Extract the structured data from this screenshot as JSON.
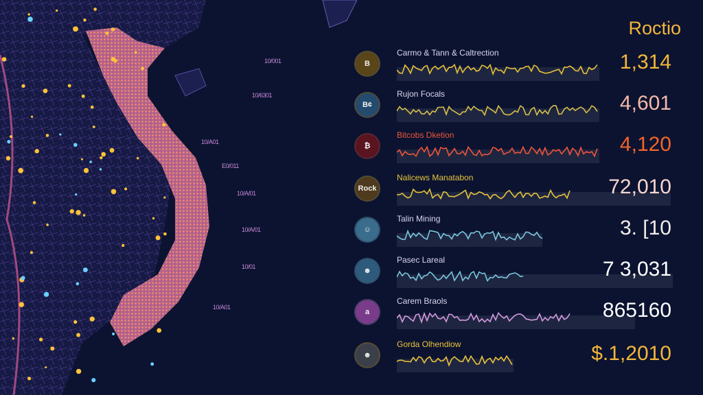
{
  "title": "Roctio",
  "map_labels": [
    "10/001",
    "10/6301",
    "10/A01",
    "E0/011",
    "10/A/01",
    "10/A/01",
    "10/01",
    "10/A01"
  ],
  "rows": [
    {
      "label": "Carmo & Tann & Caltrection",
      "value": "1,314",
      "icon_text": "B",
      "color": "#e8c23a",
      "value_color": "#f4b63a",
      "icon_bg": "#5a4518"
    },
    {
      "label": "Rujon Focals",
      "value": "4,601",
      "icon_text": "B¢",
      "color": "#d8c04a",
      "value_color": "#f5b8a8",
      "icon_bg": "#244a6e"
    },
    {
      "label": "Bitcobs Dketion",
      "value": "4,120",
      "icon_text": "₿",
      "color": "#f0553a",
      "value_color": "#f2642c",
      "icon_bg": "#5a1420"
    },
    {
      "label": "Nalicews Manatabon",
      "value": "72,010",
      "icon_text": "Rock",
      "color": "#e6c43c",
      "value_color": "#f7d6d0",
      "icon_bg": "#4e3a1c"
    },
    {
      "label": "Talin Mining",
      "value": "3. [10",
      "icon_text": "☺",
      "color": "#7cc8e0",
      "value_color": "#f3ecea",
      "icon_bg": "#3a6c8c"
    },
    {
      "label": "Pasec Lareal",
      "value": "7 3,031",
      "icon_text": "☻",
      "color": "#7cc8e0",
      "value_color": "#ffffff",
      "icon_bg": "#2e5a7c"
    },
    {
      "label": "Carem Braols",
      "value": "865160",
      "icon_text": "a",
      "color": "#d69ae0",
      "value_color": "#ffffff",
      "icon_bg": "#7a3c8a"
    },
    {
      "label": "Gorda Olhendiow",
      "value": "$.1,2010",
      "icon_text": "☻",
      "color": "#ecc43a",
      "value_color": "#f4b63a",
      "icon_bg": "#3a3f4a"
    }
  ]
}
